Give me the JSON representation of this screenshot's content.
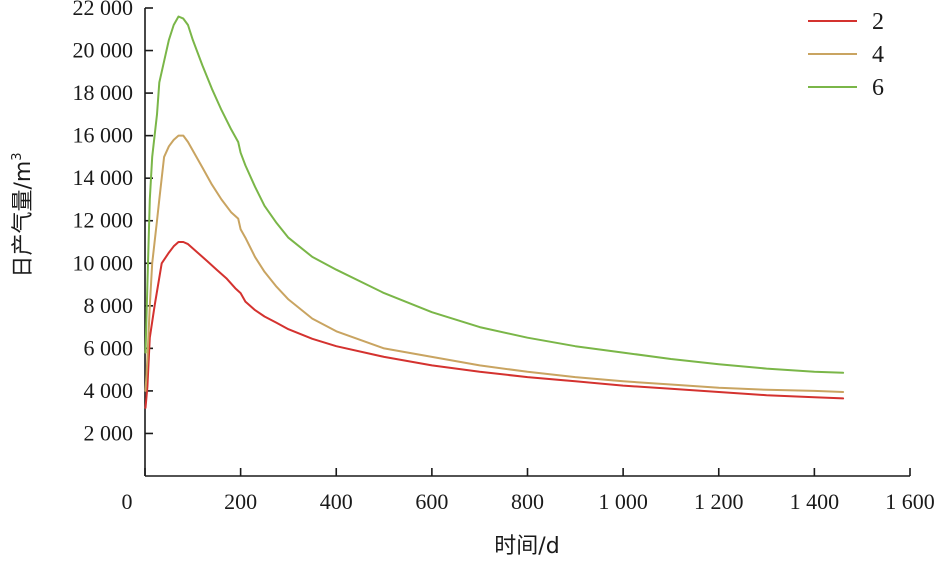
{
  "chart_data": {
    "type": "line",
    "title": "",
    "xlabel": "时间/d",
    "ylabel": "日产气量/m",
    "ylabel_sup": "3",
    "xlim": [
      0,
      1600
    ],
    "ylim": [
      0,
      22000
    ],
    "x_ticks": [
      0,
      200,
      400,
      600,
      800,
      1000,
      1200,
      1400,
      1600
    ],
    "x_tick_labels": [
      "0",
      "200",
      "400",
      "600",
      "800",
      "1 000",
      "1 200",
      "1 400",
      "1 600"
    ],
    "y_ticks": [
      2000,
      4000,
      6000,
      8000,
      10000,
      12000,
      14000,
      16000,
      18000,
      20000,
      22000
    ],
    "y_tick_labels": [
      "2 000",
      "4 000",
      "6 000",
      "8 000",
      "10 000",
      "12 000",
      "14 000",
      "16 000",
      "18 000",
      "20 000",
      "22 000"
    ],
    "grid": false,
    "legend_position": "top-right",
    "series": [
      {
        "name": "2",
        "color": "#d4322f",
        "points": [
          [
            1,
            3200
          ],
          [
            5,
            4200
          ],
          [
            10,
            6500
          ],
          [
            20,
            8000
          ],
          [
            35,
            10000
          ],
          [
            50,
            10500
          ],
          [
            60,
            10800
          ],
          [
            70,
            11000
          ],
          [
            80,
            11000
          ],
          [
            90,
            10900
          ],
          [
            110,
            10500
          ],
          [
            130,
            10100
          ],
          [
            150,
            9700
          ],
          [
            170,
            9300
          ],
          [
            190,
            8800
          ],
          [
            200,
            8600
          ],
          [
            210,
            8200
          ],
          [
            230,
            7800
          ],
          [
            250,
            7500
          ],
          [
            275,
            7200
          ],
          [
            300,
            6900
          ],
          [
            350,
            6450
          ],
          [
            400,
            6100
          ],
          [
            500,
            5600
          ],
          [
            600,
            5200
          ],
          [
            700,
            4900
          ],
          [
            800,
            4650
          ],
          [
            900,
            4450
          ],
          [
            1000,
            4250
          ],
          [
            1100,
            4100
          ],
          [
            1200,
            3950
          ],
          [
            1300,
            3800
          ],
          [
            1400,
            3700
          ],
          [
            1460,
            3650
          ]
        ]
      },
      {
        "name": "4",
        "color": "#c9a461",
        "points": [
          [
            1,
            4000
          ],
          [
            5,
            5500
          ],
          [
            10,
            8000
          ],
          [
            15,
            10000
          ],
          [
            20,
            11000
          ],
          [
            25,
            12000
          ],
          [
            30,
            13000
          ],
          [
            40,
            15000
          ],
          [
            50,
            15500
          ],
          [
            60,
            15800
          ],
          [
            70,
            16000
          ],
          [
            80,
            16000
          ],
          [
            90,
            15700
          ],
          [
            100,
            15300
          ],
          [
            120,
            14500
          ],
          [
            140,
            13700
          ],
          [
            160,
            13000
          ],
          [
            180,
            12400
          ],
          [
            195,
            12100
          ],
          [
            200,
            11600
          ],
          [
            210,
            11200
          ],
          [
            230,
            10300
          ],
          [
            250,
            9600
          ],
          [
            275,
            8900
          ],
          [
            300,
            8300
          ],
          [
            350,
            7400
          ],
          [
            400,
            6800
          ],
          [
            500,
            6000
          ],
          [
            600,
            5600
          ],
          [
            700,
            5200
          ],
          [
            800,
            4900
          ],
          [
            900,
            4650
          ],
          [
            1000,
            4450
          ],
          [
            1100,
            4300
          ],
          [
            1200,
            4150
          ],
          [
            1300,
            4050
          ],
          [
            1400,
            4000
          ],
          [
            1460,
            3950
          ]
        ]
      },
      {
        "name": "6",
        "color": "#7ab648",
        "points": [
          [
            1,
            5800
          ],
          [
            5,
            9000
          ],
          [
            10,
            13000
          ],
          [
            15,
            15000
          ],
          [
            20,
            16000
          ],
          [
            25,
            17000
          ],
          [
            30,
            18500
          ],
          [
            40,
            19500
          ],
          [
            50,
            20500
          ],
          [
            60,
            21200
          ],
          [
            70,
            21600
          ],
          [
            80,
            21500
          ],
          [
            90,
            21200
          ],
          [
            100,
            20500
          ],
          [
            120,
            19300
          ],
          [
            140,
            18200
          ],
          [
            160,
            17200
          ],
          [
            180,
            16300
          ],
          [
            195,
            15700
          ],
          [
            200,
            15200
          ],
          [
            210,
            14600
          ],
          [
            230,
            13600
          ],
          [
            250,
            12700
          ],
          [
            275,
            11900
          ],
          [
            300,
            11200
          ],
          [
            350,
            10300
          ],
          [
            400,
            9700
          ],
          [
            500,
            8600
          ],
          [
            600,
            7700
          ],
          [
            700,
            7000
          ],
          [
            800,
            6500
          ],
          [
            900,
            6100
          ],
          [
            1000,
            5800
          ],
          [
            1100,
            5500
          ],
          [
            1200,
            5250
          ],
          [
            1300,
            5050
          ],
          [
            1400,
            4900
          ],
          [
            1460,
            4850
          ]
        ]
      }
    ]
  }
}
